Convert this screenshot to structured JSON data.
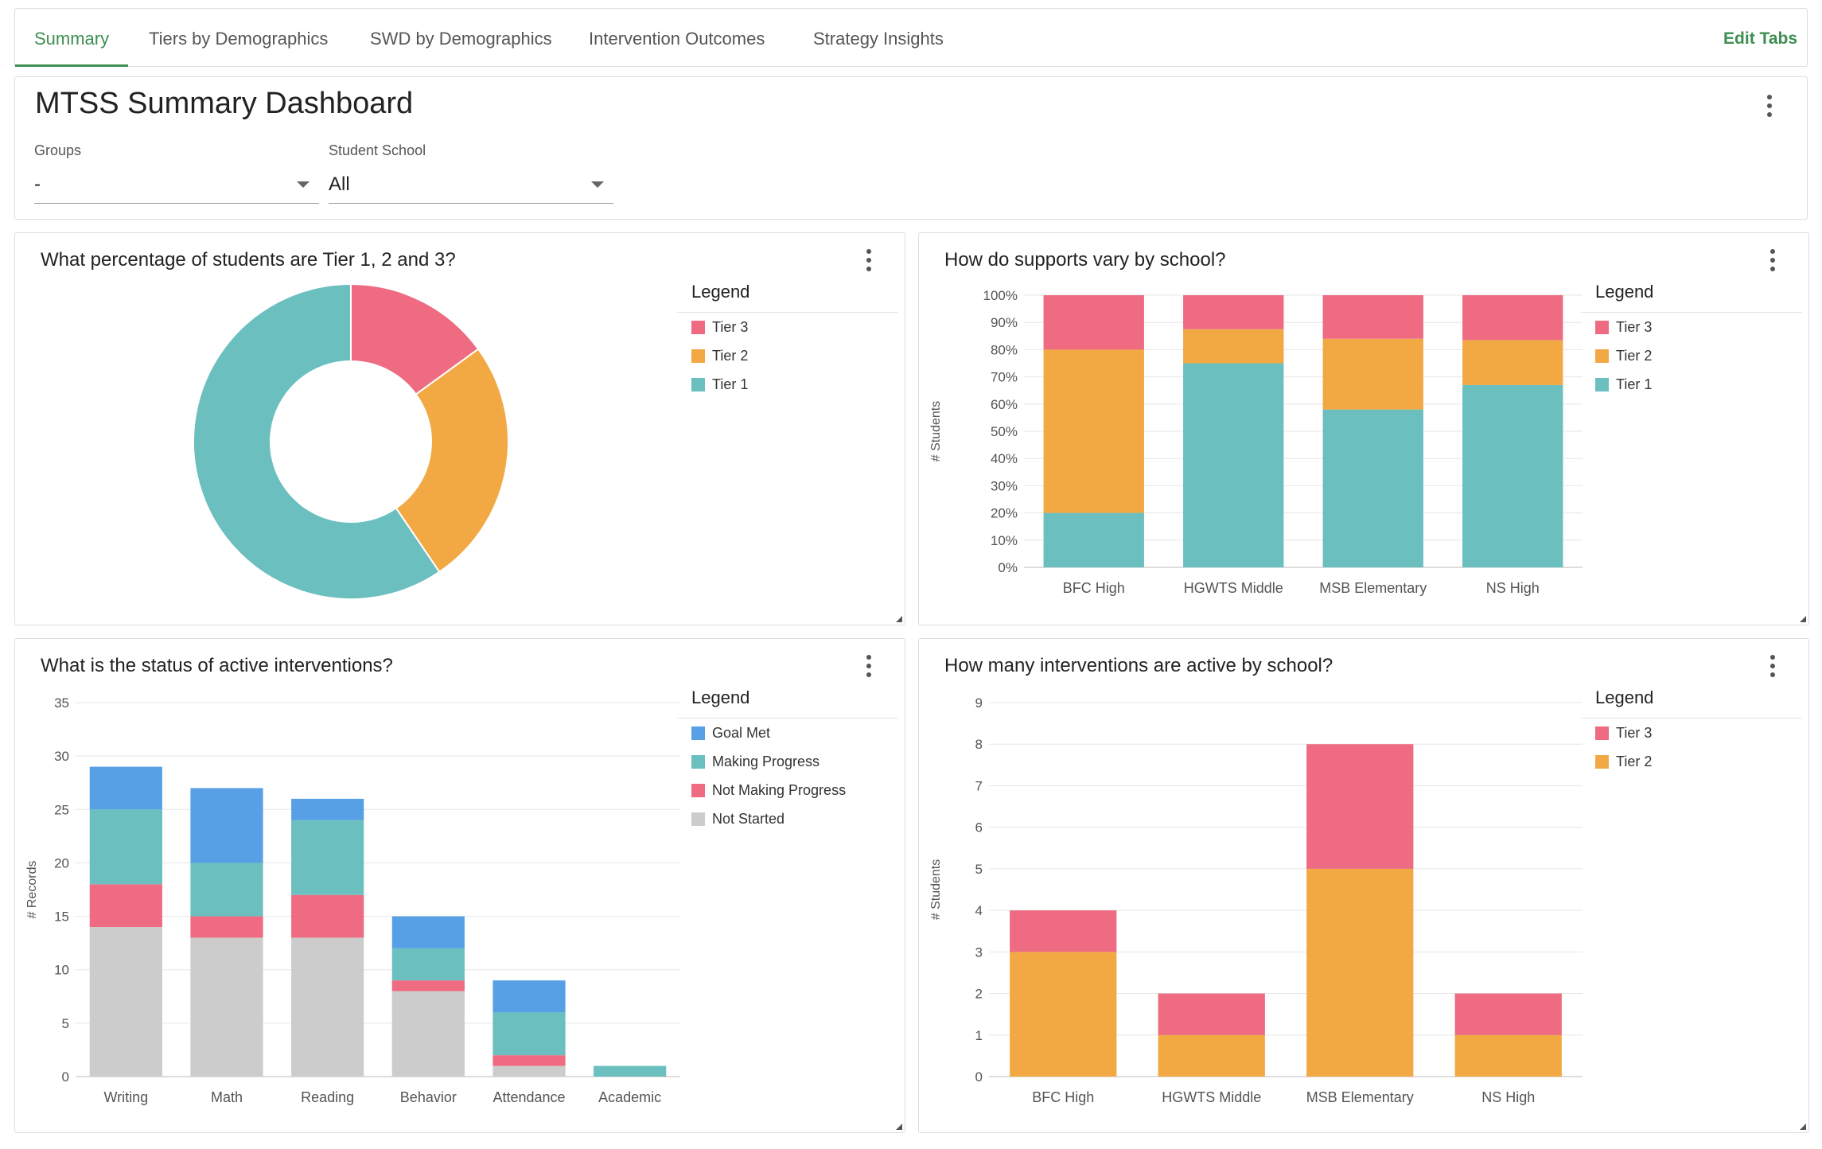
{
  "tabs": [
    {
      "label": "Summary",
      "active": true
    },
    {
      "label": "Tiers by Demographics",
      "active": false
    },
    {
      "label": "SWD by Demographics",
      "active": false
    },
    {
      "label": "Intervention Outcomes",
      "active": false
    },
    {
      "label": "Strategy Insights",
      "active": false
    }
  ],
  "edit_tabs_label": "Edit Tabs",
  "header": {
    "title": "MTSS Summary Dashboard",
    "filters": {
      "groups": {
        "label": "Groups",
        "value": "-"
      },
      "school": {
        "label": "Student School",
        "value": "All"
      }
    }
  },
  "colors": {
    "tier3": "#ee6b82",
    "tier2": "#f2a944",
    "tier1": "#6bbfbf",
    "goal_met": "#58a0e6",
    "making_progress": "#6bbfbf",
    "not_making_progress": "#ee6b82",
    "not_started": "#cccccc",
    "accent": "#3d8e52"
  },
  "panels": {
    "tiers": {
      "title": "What percentage of students are Tier 1, 2 and 3?",
      "legend_title": "Legend",
      "legend": [
        "Tier 3",
        "Tier 2",
        "Tier 1"
      ]
    },
    "supports": {
      "title": "How do supports vary by school?",
      "legend_title": "Legend",
      "legend": [
        "Tier 3",
        "Tier 2",
        "Tier 1"
      ]
    },
    "status": {
      "title": "What is the status of active interventions?",
      "legend_title": "Legend",
      "legend": [
        "Goal Met",
        "Making Progress",
        "Not Making Progress",
        "Not Started"
      ]
    },
    "active": {
      "title": "How many interventions are active by school?",
      "legend_title": "Legend",
      "legend": [
        "Tier 3",
        "Tier 2"
      ]
    }
  },
  "chart_data": [
    {
      "type": "pie",
      "variant": "donut",
      "labels": [
        "Tier 3",
        "Tier 2",
        "Tier 1"
      ],
      "values": [
        15,
        25.5,
        59.5
      ],
      "colors": [
        "#ee6b82",
        "#f2a944",
        "#6bbfbf"
      ]
    },
    {
      "type": "bar",
      "stacked": true,
      "categories": [
        "BFC High",
        "HGWTS Middle",
        "MSB Elementary",
        "NS High"
      ],
      "series": [
        {
          "name": "Tier 1",
          "color": "#6bbfbf",
          "values": [
            20,
            75,
            58,
            67
          ]
        },
        {
          "name": "Tier 2",
          "color": "#f2a944",
          "values": [
            60,
            12.5,
            26,
            16.5
          ]
        },
        {
          "name": "Tier 3",
          "color": "#ee6b82",
          "values": [
            20,
            12.5,
            16,
            16.5
          ]
        }
      ],
      "ylabel": "# Students",
      "ylim": [
        0,
        100
      ],
      "yticks": [
        "0%",
        "10%",
        "20%",
        "30%",
        "40%",
        "50%",
        "60%",
        "70%",
        "80%",
        "90%",
        "100%"
      ],
      "legend_position": "right"
    },
    {
      "type": "bar",
      "stacked": true,
      "categories": [
        "Writing",
        "Math",
        "Reading",
        "Behavior",
        "Attendance",
        "Academic"
      ],
      "series": [
        {
          "name": "Not Started",
          "color": "#cccccc",
          "values": [
            14,
            13,
            13,
            8,
            1,
            0
          ]
        },
        {
          "name": "Not Making Progress",
          "color": "#ee6b82",
          "values": [
            4,
            2,
            4,
            1,
            1,
            0
          ]
        },
        {
          "name": "Making Progress",
          "color": "#6bbfbf",
          "values": [
            7,
            5,
            7,
            3,
            4,
            1
          ]
        },
        {
          "name": "Goal Met",
          "color": "#58a0e6",
          "values": [
            4,
            7,
            2,
            3,
            3,
            0
          ]
        }
      ],
      "ylabel": "# Records",
      "ylim": [
        0,
        35
      ],
      "yticks": [
        "0",
        "5",
        "10",
        "15",
        "20",
        "25",
        "30",
        "35"
      ],
      "legend_position": "right"
    },
    {
      "type": "bar",
      "stacked": true,
      "categories": [
        "BFC High",
        "HGWTS Middle",
        "MSB Elementary",
        "NS High"
      ],
      "series": [
        {
          "name": "Tier 2",
          "color": "#f2a944",
          "values": [
            3,
            1,
            5,
            1
          ]
        },
        {
          "name": "Tier 3",
          "color": "#ee6b82",
          "values": [
            1,
            1,
            3,
            1
          ]
        }
      ],
      "ylabel": "# Students",
      "ylim": [
        0,
        9
      ],
      "yticks": [
        "0",
        "1",
        "2",
        "3",
        "4",
        "5",
        "6",
        "7",
        "8",
        "9"
      ],
      "legend_position": "right"
    }
  ]
}
